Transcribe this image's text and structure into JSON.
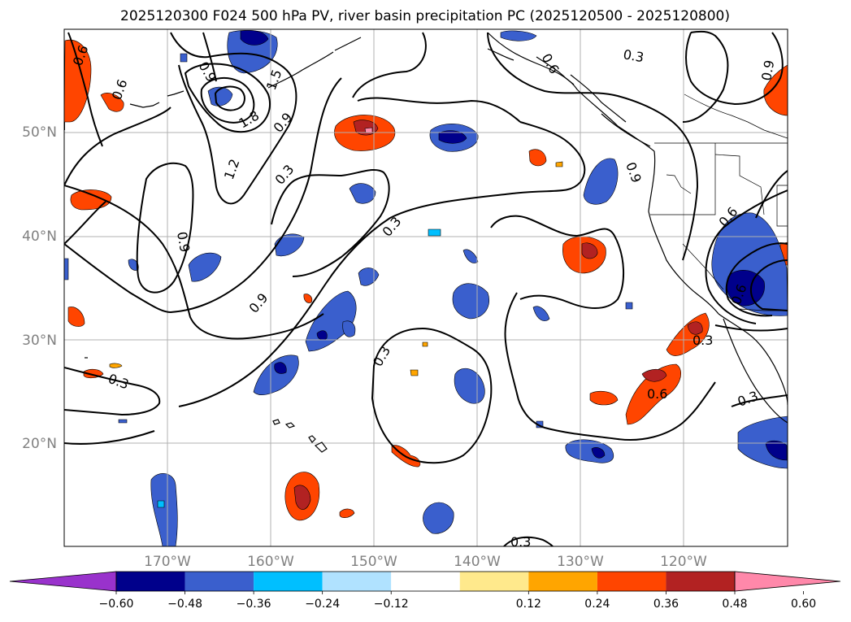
{
  "title": "2025120300 F024 500 hPa PV, river basin precipitation PC (2025120500 - 2025120800)",
  "map": {
    "lon_labels": [
      "170°W",
      "160°W",
      "150°W",
      "140°W",
      "130°W",
      "120°W"
    ],
    "lat_labels": [
      "50°N",
      "40°N",
      "30°N",
      "20°N"
    ],
    "contour_labels": [
      "0.6",
      "0.9",
      "0.6",
      "1.5",
      "1.8",
      "0.9",
      "1.2",
      "0.3",
      "0.9",
      "0.3",
      "0.9",
      "0.3",
      "0.3",
      "0.6",
      "0.9",
      "0.3",
      "0.9",
      "0.6",
      "0.3",
      "0.6",
      "0.3",
      "0.6",
      "0.3"
    ]
  },
  "colorbar": {
    "ticks": [
      "−0.60",
      "−0.48",
      "−0.36",
      "−0.24",
      "−0.12",
      "0.12",
      "0.24",
      "0.36",
      "0.48",
      "0.60"
    ],
    "colors": [
      "#9932cc",
      "#00008b",
      "#3a5fcd",
      "#00bfff",
      "#b0e2ff",
      "#ffffff",
      "#ffe98c",
      "#ffa500",
      "#ff4500",
      "#b22222",
      "#ff88aa"
    ]
  }
}
